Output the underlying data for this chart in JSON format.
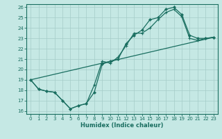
{
  "xlabel": "Humidex (Indice chaleur)",
  "bg_color": "#c5e8e4",
  "grid_color": "#a5ccc8",
  "line_color": "#1a6e60",
  "xlim_min": -0.5,
  "xlim_max": 23.5,
  "ylim_min": 15.7,
  "ylim_max": 26.3,
  "xticks": [
    0,
    1,
    2,
    3,
    4,
    5,
    6,
    7,
    8,
    9,
    10,
    11,
    12,
    13,
    14,
    15,
    16,
    17,
    18,
    19,
    20,
    21,
    22,
    23
  ],
  "yticks": [
    16,
    17,
    18,
    19,
    20,
    21,
    22,
    23,
    24,
    25,
    26
  ],
  "line1_x": [
    0,
    1,
    2,
    3,
    4,
    5,
    6,
    7,
    8,
    9,
    10,
    11,
    12,
    13,
    14,
    15,
    16,
    17,
    18,
    19,
    20,
    21,
    22,
    23
  ],
  "line1_y": [
    19.0,
    18.1,
    17.9,
    17.8,
    17.0,
    16.2,
    16.5,
    16.7,
    17.8,
    20.5,
    20.8,
    21.0,
    22.5,
    23.3,
    23.8,
    24.8,
    25.0,
    25.8,
    26.0,
    25.3,
    23.3,
    23.0,
    23.0,
    23.1
  ],
  "line2_x": [
    0,
    1,
    2,
    3,
    4,
    5,
    6,
    7,
    8,
    9,
    10,
    11,
    12,
    13,
    14,
    15,
    16,
    17,
    18,
    19,
    20,
    21,
    22,
    23
  ],
  "line2_y": [
    19.0,
    18.1,
    17.9,
    17.8,
    17.0,
    16.2,
    16.5,
    16.7,
    18.5,
    20.8,
    20.6,
    21.2,
    22.3,
    23.5,
    23.5,
    24.0,
    24.8,
    25.5,
    25.8,
    25.1,
    23.0,
    22.8,
    23.0,
    23.1
  ],
  "line3_x": [
    0,
    23
  ],
  "line3_y": [
    19.0,
    23.1
  ],
  "tick_fontsize": 5.0,
  "xlabel_fontsize": 6.0
}
